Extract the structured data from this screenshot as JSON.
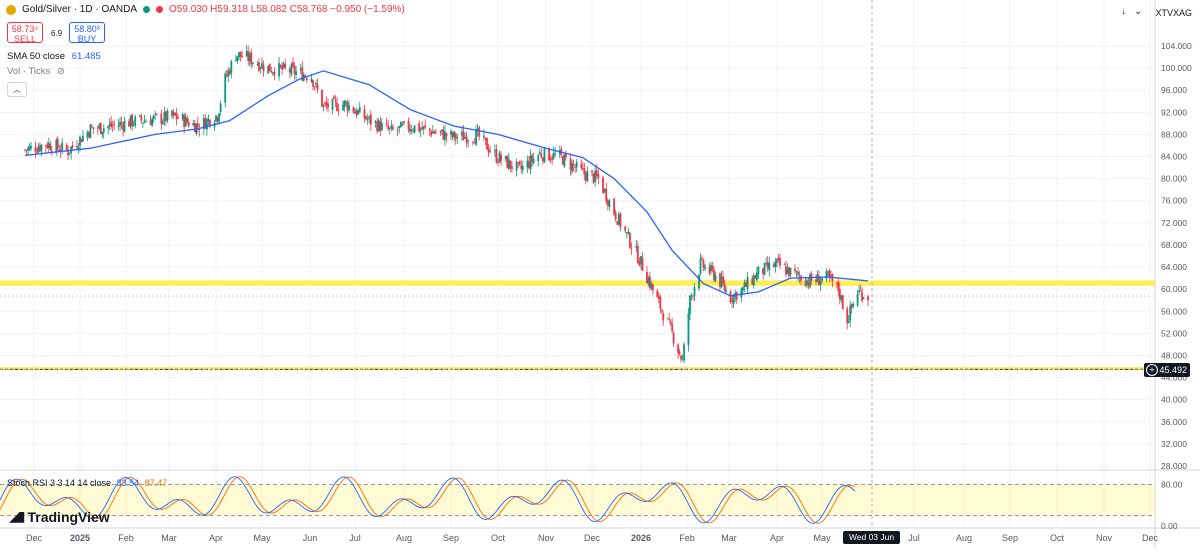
{
  "header": {
    "symbol": "Gold/Silver · 1D · OANDA",
    "ohlc": "O59.030 H59.318 L58.082 C58.768 −0.950 (−1.59%)",
    "sell_price": "58.73⁴",
    "sell_label": "SELL",
    "spread": "6.9",
    "buy_price": "58.80³",
    "buy_label": "BUY",
    "sma_label": "SMA 50 close",
    "sma_value": "61.485",
    "vol_label": "Vol · Ticks",
    "collapse_icon": "chevron-up"
  },
  "right_symbol": "XTVXAG",
  "toolbar_icons": [
    "download-icon",
    "chevron-down-icon"
  ],
  "price_tag": "45.492",
  "date_tag": "Wed 03 Jun '26",
  "stoch": {
    "label": "Stoch RSI 3 3 14 14 close",
    "k_value": "83.54",
    "d_value": "87.47",
    "k_color": "#2962ff",
    "d_color": "#ff6d00",
    "levels": [
      80,
      20
    ]
  },
  "brand": "TradingView",
  "colors": {
    "up": "#089981",
    "down": "#f23645",
    "sma": "#2962ff",
    "zone": "#ffeb3b"
  },
  "chart_data": {
    "type": "candlestick",
    "y_axis": {
      "ticks": [
        "104.000",
        "100.000",
        "96.000",
        "92.000",
        "88.000",
        "84.000",
        "80.000",
        "76.000",
        "72.000",
        "68.000",
        "64.000",
        "60.000",
        "56.000",
        "52.000",
        "48.000",
        "44.000",
        "40.000",
        "36.000",
        "32.000",
        "28.000"
      ],
      "range": [
        26,
        106
      ]
    },
    "stoch_axis": {
      "ticks": [
        "80.00",
        "0.00"
      ],
      "range": [
        0,
        100
      ]
    },
    "x_axis": {
      "ticks": [
        "Dec",
        "2025",
        "Feb",
        "Mar",
        "Apr",
        "May",
        "Jun",
        "Jul",
        "Aug",
        "Sep",
        "Oct",
        "Nov",
        "Dec",
        "2026",
        "Feb",
        "Mar",
        "Apr",
        "May",
        "Jul",
        "Aug",
        "Sep",
        "Oct",
        "Nov",
        "Dec"
      ],
      "bold_ticks": [
        "2025",
        "2026"
      ]
    },
    "last_close": 58.768,
    "sma50_last": 61.485,
    "horizontal_zones": [
      {
        "low": 60.6,
        "high": 61.6
      },
      {
        "low": 45.4,
        "high": 45.9
      }
    ],
    "horizontal_line": 45.492,
    "close_path": [
      [
        "2024-11-25",
        85.2
      ],
      [
        "2024-12-10",
        86.3
      ],
      [
        "2024-12-24",
        85.0
      ],
      [
        "2025-01-08",
        89.0
      ],
      [
        "2025-01-22",
        89.5
      ],
      [
        "2025-02-05",
        90.3
      ],
      [
        "2025-02-20",
        90.8
      ],
      [
        "2025-03-05",
        91.2
      ],
      [
        "2025-03-20",
        89.5
      ],
      [
        "2025-04-02",
        91.5
      ],
      [
        "2025-04-07",
        98.0
      ],
      [
        "2025-04-14",
        102.5
      ],
      [
        "2025-04-22",
        101.8
      ],
      [
        "2025-05-05",
        100.0
      ],
      [
        "2025-05-20",
        99.5
      ],
      [
        "2025-06-02",
        98.5
      ],
      [
        "2025-06-10",
        93.0
      ],
      [
        "2025-06-25",
        93.5
      ],
      [
        "2025-07-10",
        90.5
      ],
      [
        "2025-07-24",
        88.5
      ],
      [
        "2025-08-05",
        89.5
      ],
      [
        "2025-08-20",
        88.5
      ],
      [
        "2025-09-03",
        87.5
      ],
      [
        "2025-09-18",
        87.8
      ],
      [
        "2025-09-30",
        84.0
      ],
      [
        "2025-10-15",
        81.5
      ],
      [
        "2025-10-28",
        84.5
      ],
      [
        "2025-11-10",
        84.0
      ],
      [
        "2025-11-25",
        81.0
      ],
      [
        "2025-12-05",
        80.0
      ],
      [
        "2025-12-15",
        74.0
      ],
      [
        "2025-12-30",
        66.0
      ],
      [
        "2026-01-12",
        58.0
      ],
      [
        "2026-01-22",
        52.0
      ],
      [
        "2026-01-29",
        47.0
      ],
      [
        "2026-02-03",
        58.0
      ],
      [
        "2026-02-10",
        64.5
      ],
      [
        "2026-02-20",
        62.5
      ],
      [
        "2026-03-02",
        58.5
      ],
      [
        "2026-03-10",
        60.0
      ],
      [
        "2026-03-20",
        63.0
      ],
      [
        "2026-04-01",
        64.5
      ],
      [
        "2026-04-10",
        63.0
      ],
      [
        "2026-04-22",
        61.5
      ],
      [
        "2026-05-05",
        62.0
      ],
      [
        "2026-05-12",
        60.0
      ],
      [
        "2026-05-18",
        54.5
      ],
      [
        "2026-05-25",
        59.5
      ],
      [
        "2026-06-01",
        58.77
      ]
    ],
    "sma50_path": [
      [
        "2024-11-25",
        84.2
      ],
      [
        "2025-01-08",
        85.5
      ],
      [
        "2025-02-20",
        88.0
      ],
      [
        "2025-03-20",
        89.0
      ],
      [
        "2025-04-10",
        90.5
      ],
      [
        "2025-05-05",
        95.0
      ],
      [
        "2025-05-25",
        98.0
      ],
      [
        "2025-06-10",
        99.5
      ],
      [
        "2025-07-10",
        97.0
      ],
      [
        "2025-08-05",
        92.5
      ],
      [
        "2025-09-03",
        89.5
      ],
      [
        "2025-10-01",
        88.0
      ],
      [
        "2025-11-01",
        85.5
      ],
      [
        "2025-11-25",
        83.8
      ],
      [
        "2025-12-15",
        80.0
      ],
      [
        "2026-01-05",
        74.0
      ],
      [
        "2026-01-22",
        67.0
      ],
      [
        "2026-02-12",
        61.0
      ],
      [
        "2026-03-02",
        58.8
      ],
      [
        "2026-03-20",
        59.5
      ],
      [
        "2026-04-10",
        62.0
      ],
      [
        "2026-05-05",
        62.2
      ],
      [
        "2026-05-20",
        61.8
      ],
      [
        "2026-06-01",
        61.5
      ]
    ]
  }
}
